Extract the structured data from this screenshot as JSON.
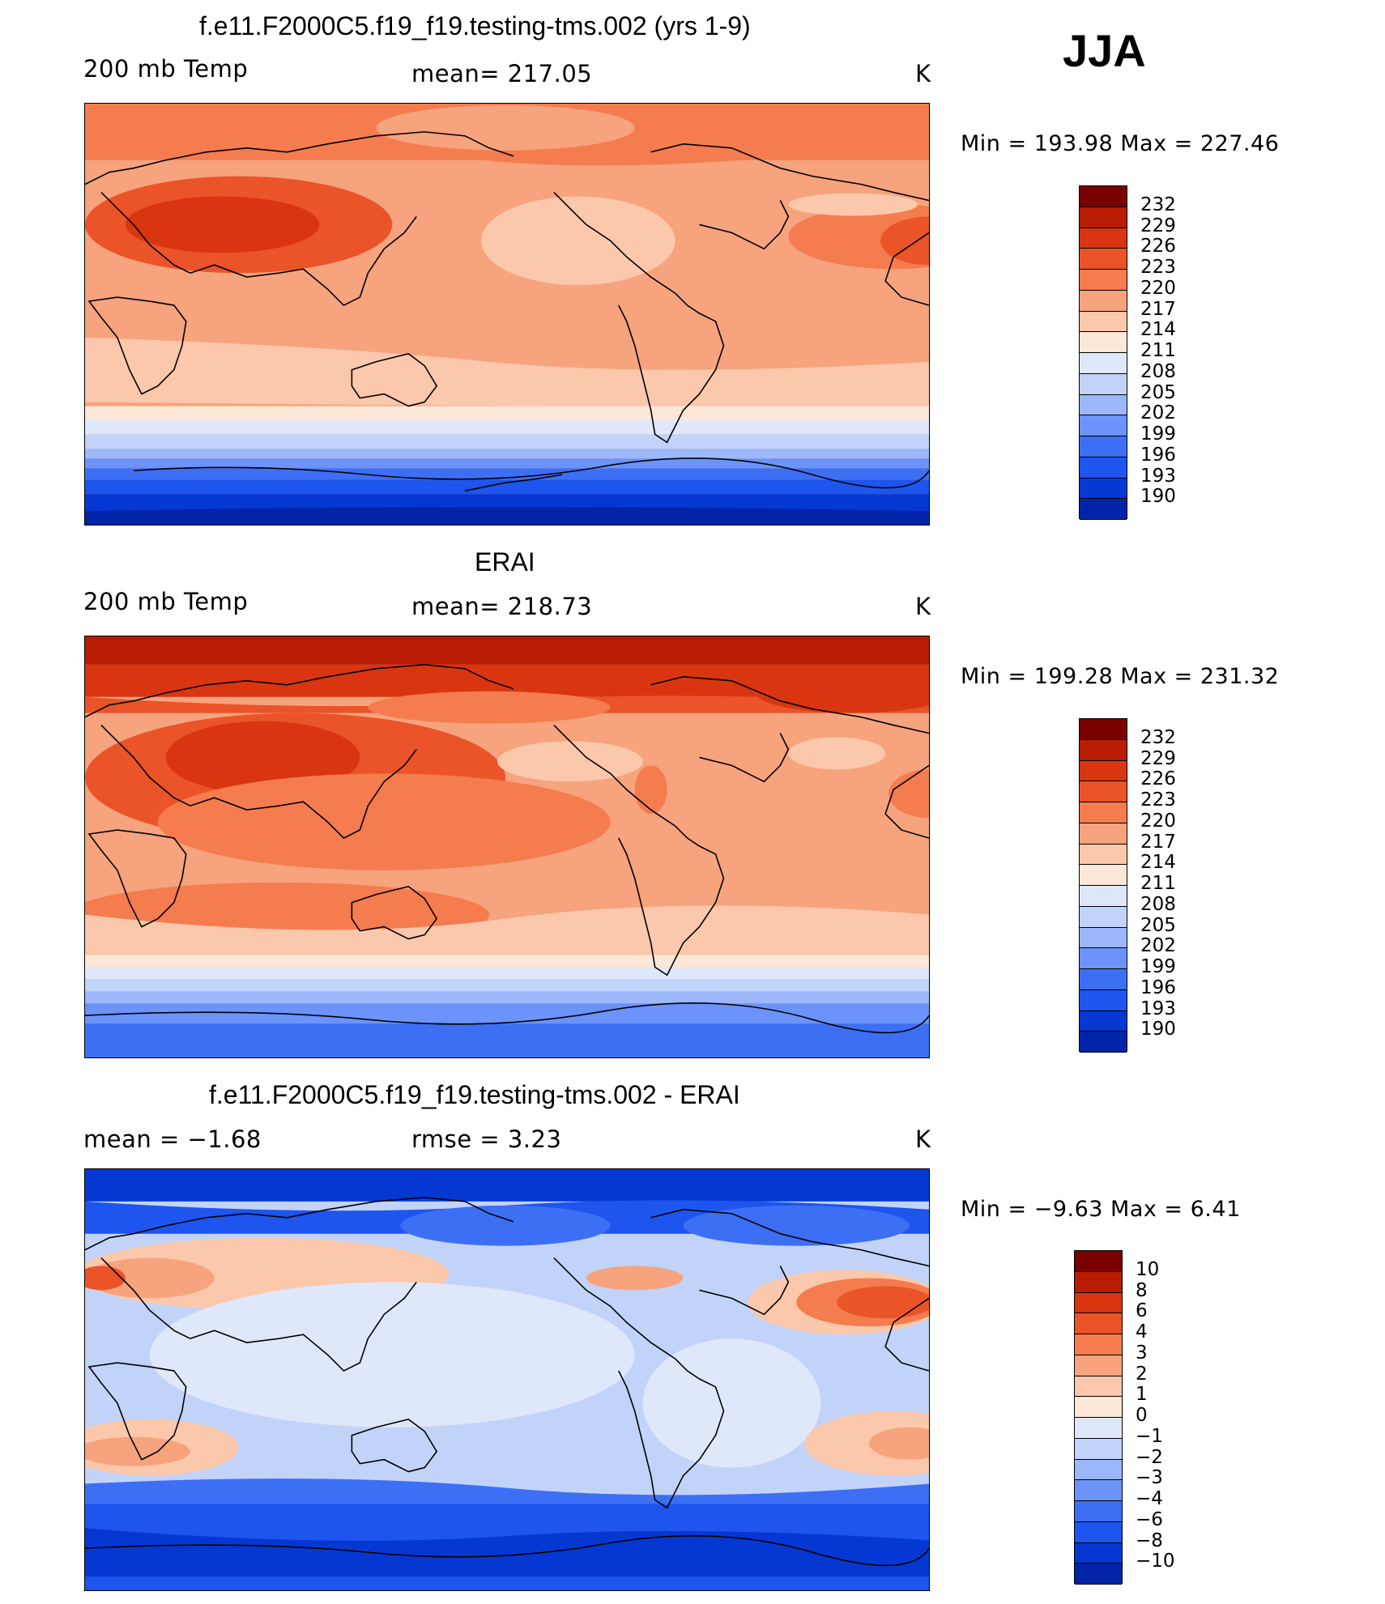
{
  "season": "JJA",
  "colors": {
    "temp_scale": [
      "#000e7a",
      "#0224a8",
      "#0538d3",
      "#1d55ee",
      "#3d6ff5",
      "#6b93fa",
      "#9cb8fb",
      "#c2d3f9",
      "#dfe8fb",
      "#fde7d6",
      "#fbc8ab",
      "#f6a37e",
      "#f47c4f",
      "#ea5428",
      "#d93510",
      "#b81c03",
      "#7a0000"
    ],
    "diff_scale": [
      "#000e7a",
      "#0224a8",
      "#0538d3",
      "#1d55ee",
      "#3d6ff5",
      "#6b93fa",
      "#9cb8fb",
      "#c2d3f9",
      "#dfe8fb",
      "#fde7d6",
      "#fbc8ab",
      "#f6a37e",
      "#f47c4f",
      "#ea5428",
      "#d93510",
      "#b81c03",
      "#7a0000"
    ]
  },
  "panels": [
    {
      "title": "f.e11.F2000C5.f19_f19.testing-tms.002 (yrs 1-9)",
      "left_label": "200 mb Temp",
      "center_label": "mean=  217.05",
      "units": "K",
      "min_max": "Min  =  193.98  Max  =  227.46",
      "colorbar_labels": [
        "232",
        "229",
        "226",
        "223",
        "220",
        "217",
        "214",
        "211",
        "208",
        "205",
        "202",
        "199",
        "196",
        "193",
        "190"
      ]
    },
    {
      "title": "ERAI",
      "left_label": "200 mb Temp",
      "center_label": "mean=  218.73",
      "units": "K",
      "min_max": "Min  =  199.28  Max  =  231.32",
      "colorbar_labels": [
        "232",
        "229",
        "226",
        "223",
        "220",
        "217",
        "214",
        "211",
        "208",
        "205",
        "202",
        "199",
        "196",
        "193",
        "190"
      ]
    },
    {
      "title": "f.e11.F2000C5.f19_f19.testing-tms.002 - ERAI",
      "left_label": "mean  =    −1.68",
      "center_label": "rmse  =     3.23",
      "units": "K",
      "min_max": "Min  =    −9.63  Max  =     6.41",
      "colorbar_labels": [
        "10",
        "8",
        "6",
        "4",
        "3",
        "2",
        "1",
        "0",
        "−1",
        "−2",
        "−3",
        "−4",
        "−6",
        "−8",
        "−10"
      ]
    }
  ]
}
